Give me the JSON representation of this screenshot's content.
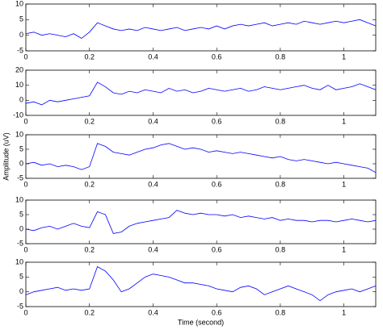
{
  "chart_data": [
    {
      "type": "line",
      "color": "#0000ff",
      "xlim": [
        0,
        1.1
      ],
      "xticks": [
        0,
        0.2,
        0.4,
        0.6,
        0.8,
        1
      ],
      "ylim": [
        -5,
        10
      ],
      "yticks": [
        -5,
        0,
        5,
        10
      ],
      "x": [
        0,
        0.025,
        0.05,
        0.075,
        0.1,
        0.125,
        0.15,
        0.175,
        0.2,
        0.225,
        0.25,
        0.275,
        0.3,
        0.325,
        0.35,
        0.375,
        0.4,
        0.425,
        0.45,
        0.475,
        0.5,
        0.525,
        0.55,
        0.575,
        0.6,
        0.625,
        0.65,
        0.675,
        0.7,
        0.725,
        0.75,
        0.775,
        0.8,
        0.825,
        0.85,
        0.875,
        0.9,
        0.925,
        0.95,
        0.975,
        1,
        1.025,
        1.05,
        1.075,
        1.1
      ],
      "values": [
        0.5,
        1,
        0,
        0.5,
        0,
        -0.5,
        0.5,
        -1,
        1,
        4,
        3,
        2,
        1.5,
        2,
        1.5,
        2.5,
        2,
        1.5,
        2,
        2.5,
        1.5,
        2,
        2.5,
        2,
        3,
        2,
        3,
        3.5,
        3,
        3.5,
        4,
        3,
        3.5,
        4,
        3.5,
        4.5,
        4,
        3.5,
        4,
        4.5,
        4,
        4.5,
        5,
        4,
        3
      ]
    },
    {
      "type": "line",
      "color": "#0000ff",
      "xlim": [
        0,
        1.1
      ],
      "xticks": [
        0,
        0.2,
        0.4,
        0.6,
        0.8,
        1
      ],
      "ylim": [
        -10,
        20
      ],
      "yticks": [
        -10,
        0,
        10,
        20
      ],
      "x": [
        0,
        0.025,
        0.05,
        0.075,
        0.1,
        0.125,
        0.15,
        0.175,
        0.2,
        0.225,
        0.25,
        0.275,
        0.3,
        0.325,
        0.35,
        0.375,
        0.4,
        0.425,
        0.45,
        0.475,
        0.5,
        0.525,
        0.55,
        0.575,
        0.6,
        0.625,
        0.65,
        0.675,
        0.7,
        0.725,
        0.75,
        0.775,
        0.8,
        0.825,
        0.85,
        0.875,
        0.9,
        0.925,
        0.95,
        0.975,
        1,
        1.025,
        1.05,
        1.075,
        1.1
      ],
      "values": [
        -2,
        -1,
        -3,
        0,
        -1,
        0,
        1,
        2,
        3,
        12,
        9,
        5,
        4,
        6,
        5,
        7,
        6,
        5,
        8,
        6,
        7,
        5,
        6,
        8,
        7,
        6,
        7,
        8,
        6,
        7,
        9,
        8,
        7,
        8,
        9,
        10,
        8,
        7,
        10,
        7,
        8,
        9,
        11,
        9,
        7
      ]
    },
    {
      "type": "line",
      "color": "#0000ff",
      "xlim": [
        0,
        1.1
      ],
      "xticks": [
        0,
        0.2,
        0.4,
        0.6,
        0.8,
        1
      ],
      "ylim": [
        -5,
        10
      ],
      "yticks": [
        -5,
        0,
        5,
        10
      ],
      "ylabel": "Amplitude (uV)",
      "x": [
        0,
        0.025,
        0.05,
        0.075,
        0.1,
        0.125,
        0.15,
        0.175,
        0.2,
        0.225,
        0.25,
        0.275,
        0.3,
        0.325,
        0.35,
        0.375,
        0.4,
        0.425,
        0.45,
        0.475,
        0.5,
        0.525,
        0.55,
        0.575,
        0.6,
        0.625,
        0.65,
        0.675,
        0.7,
        0.725,
        0.75,
        0.775,
        0.8,
        0.825,
        0.85,
        0.875,
        0.9,
        0.925,
        0.95,
        0.975,
        1,
        1.025,
        1.05,
        1.075,
        1.1
      ],
      "values": [
        0,
        0.5,
        -0.5,
        0,
        -1,
        -0.5,
        -1,
        -2,
        -1,
        7,
        6,
        4,
        3.5,
        3,
        4,
        5,
        5.5,
        6.5,
        7,
        6,
        5,
        5.5,
        5,
        4,
        4.5,
        4,
        3.5,
        4,
        3.5,
        3,
        2.5,
        2,
        2.5,
        1.5,
        1,
        1.5,
        1,
        0.5,
        0,
        0.5,
        0,
        -0.5,
        -1,
        -1.5,
        -3
      ]
    },
    {
      "type": "line",
      "color": "#0000ff",
      "xlim": [
        0,
        1.1
      ],
      "xticks": [
        0,
        0.2,
        0.4,
        0.6,
        0.8,
        1
      ],
      "ylim": [
        -5,
        10
      ],
      "yticks": [
        -5,
        0,
        5,
        10
      ],
      "x": [
        0,
        0.025,
        0.05,
        0.075,
        0.1,
        0.125,
        0.15,
        0.175,
        0.2,
        0.225,
        0.25,
        0.275,
        0.3,
        0.325,
        0.35,
        0.375,
        0.4,
        0.425,
        0.45,
        0.475,
        0.5,
        0.525,
        0.55,
        0.575,
        0.6,
        0.625,
        0.65,
        0.675,
        0.7,
        0.725,
        0.75,
        0.775,
        0.8,
        0.825,
        0.85,
        0.875,
        0.9,
        0.925,
        0.95,
        0.975,
        1,
        1.025,
        1.05,
        1.075,
        1.1
      ],
      "values": [
        0,
        -0.5,
        0.5,
        1,
        0,
        1,
        2,
        1,
        0.5,
        6,
        5,
        -1.5,
        -1,
        1,
        2,
        2.5,
        3,
        3.5,
        4,
        6.5,
        5.5,
        5,
        5.5,
        5,
        5,
        4.5,
        5,
        4,
        4.5,
        4,
        3.5,
        4,
        3,
        3.5,
        3,
        3,
        2.5,
        3,
        3,
        2.5,
        3,
        3.5,
        3,
        2.5,
        3
      ]
    },
    {
      "type": "line",
      "color": "#0000ff",
      "xlim": [
        0,
        1.1
      ],
      "xticks": [
        0,
        0.2,
        0.4,
        0.6,
        0.8,
        1
      ],
      "ylim": [
        -5,
        10
      ],
      "yticks": [
        -5,
        0,
        5,
        10
      ],
      "xlabel": "Time (second)",
      "x": [
        0,
        0.025,
        0.05,
        0.075,
        0.1,
        0.125,
        0.15,
        0.175,
        0.2,
        0.225,
        0.25,
        0.275,
        0.3,
        0.325,
        0.35,
        0.375,
        0.4,
        0.425,
        0.45,
        0.475,
        0.5,
        0.525,
        0.55,
        0.575,
        0.6,
        0.625,
        0.65,
        0.675,
        0.7,
        0.725,
        0.75,
        0.775,
        0.8,
        0.825,
        0.85,
        0.875,
        0.9,
        0.925,
        0.95,
        0.975,
        1,
        1.025,
        1.05,
        1.075,
        1.1
      ],
      "values": [
        -1,
        0,
        0.5,
        1,
        1.5,
        0.5,
        1,
        0.5,
        1,
        8.5,
        7,
        4,
        0,
        1,
        3,
        5,
        6,
        5.5,
        5,
        4,
        3,
        3,
        2.5,
        2,
        1,
        0.5,
        0,
        1.5,
        2,
        1,
        -1,
        0,
        1,
        2,
        1,
        0,
        -1,
        -3,
        -1,
        0,
        0.5,
        1,
        0,
        1,
        2
      ]
    }
  ]
}
